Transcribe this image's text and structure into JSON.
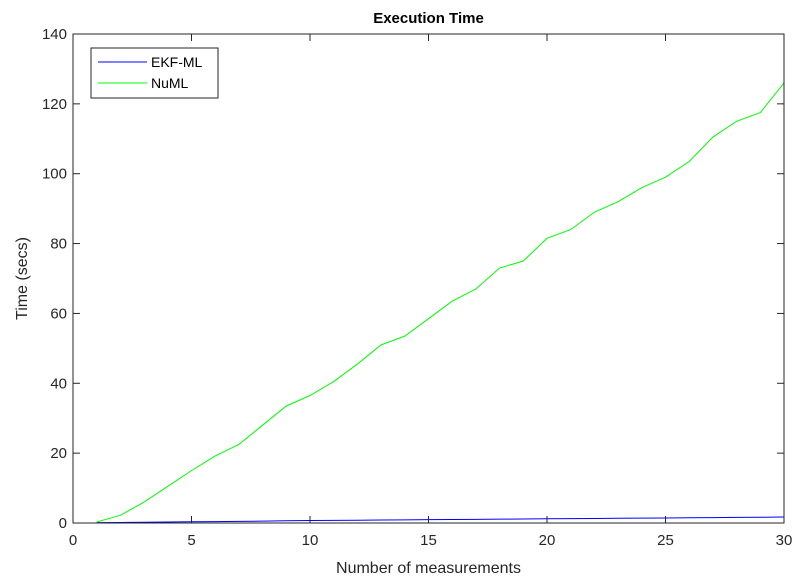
{
  "chart_data": {
    "type": "line",
    "title": "Execution Time",
    "xlabel": "Number of measurements",
    "ylabel": "Time (secs)",
    "xlim": [
      0,
      30
    ],
    "ylim": [
      0,
      140
    ],
    "xticks": [
      0,
      5,
      10,
      15,
      20,
      25,
      30
    ],
    "yticks": [
      0,
      20,
      40,
      60,
      80,
      100,
      120,
      140
    ],
    "grid": false,
    "legend_position": "top-left",
    "series": [
      {
        "name": "EKF-ML",
        "color": "#0000ff",
        "x": [
          1,
          2,
          3,
          4,
          5,
          6,
          7,
          8,
          9,
          10,
          11,
          12,
          13,
          14,
          15,
          16,
          17,
          18,
          19,
          20,
          21,
          22,
          23,
          24,
          25,
          26,
          27,
          28,
          29,
          30
        ],
        "y": [
          0.1,
          0.15,
          0.2,
          0.3,
          0.35,
          0.4,
          0.45,
          0.55,
          0.65,
          0.7,
          0.75,
          0.8,
          0.85,
          0.9,
          0.95,
          1.0,
          1.05,
          1.1,
          1.15,
          1.2,
          1.25,
          1.3,
          1.35,
          1.4,
          1.45,
          1.5,
          1.55,
          1.6,
          1.65,
          1.7
        ]
      },
      {
        "name": "NuML",
        "color": "#00ff00",
        "x": [
          1,
          2,
          3,
          4,
          5,
          6,
          7,
          8,
          9,
          10,
          11,
          12,
          13,
          14,
          15,
          16,
          17,
          18,
          19,
          20,
          21,
          22,
          23,
          24,
          25,
          26,
          27,
          28,
          29,
          30
        ],
        "y": [
          0.3,
          2.2,
          6.0,
          10.5,
          15.0,
          19.2,
          22.5,
          28.0,
          33.5,
          36.5,
          40.5,
          45.5,
          51.0,
          53.5,
          58.5,
          63.5,
          67.0,
          73.0,
          75.0,
          81.5,
          84.0,
          89.0,
          92.0,
          96.0,
          99.0,
          103.5,
          110.5,
          115.0,
          117.5,
          126.0
        ]
      }
    ]
  }
}
